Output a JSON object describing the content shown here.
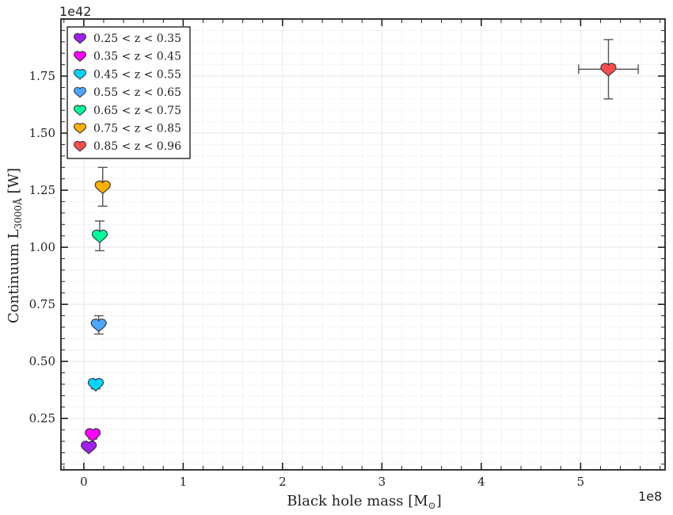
{
  "chart_data": {
    "type": "scatter",
    "xlabel": "Black hole mass [M",
    "xlabel_sub": "⊙",
    "xlabel_end": "]",
    "ylabel": "Continuum L",
    "ylabel_sub": "3000Å",
    "ylabel_end": " [W]",
    "x_offset_label": "1e8",
    "y_offset_label": "1e42",
    "xlim": [
      -0.23,
      5.85
    ],
    "ylim": [
      0.025,
      2.0
    ],
    "xticks": [
      0,
      1,
      2,
      3,
      4,
      5
    ],
    "yticks": [
      0.25,
      0.5,
      0.75,
      1.0,
      1.25,
      1.5,
      1.75
    ],
    "ytick_labels": [
      "0.25",
      "0.50",
      "0.75",
      "1.00",
      "1.25",
      "1.50",
      "1.75"
    ],
    "grid": true,
    "legend_position": "upper-left",
    "marker": "heart",
    "points": [
      {
        "name": "0.25 < z < 0.35",
        "color": "#a020f0",
        "x": 0.05,
        "y": 0.125,
        "xerr": 0,
        "yerr": 0.0
      },
      {
        "name": "0.35 < z < 0.45",
        "color": "#ff00ff",
        "x": 0.09,
        "y": 0.18,
        "xerr": 0,
        "yerr": 0.02
      },
      {
        "name": "0.45 < z < 0.55",
        "color": "#00d5ff",
        "x": 0.12,
        "y": 0.4,
        "xerr": 0,
        "yerr": 0.02
      },
      {
        "name": "0.55 < z < 0.65",
        "color": "#4aa8ff",
        "x": 0.15,
        "y": 0.66,
        "xerr": 0,
        "yerr": 0.04
      },
      {
        "name": "0.65 < z < 0.75",
        "color": "#00ff99",
        "x": 0.16,
        "y": 1.05,
        "xerr": 0,
        "yerr": 0.065
      },
      {
        "name": "0.75 < z < 0.85",
        "color": "#ffb000",
        "x": 0.19,
        "y": 1.265,
        "xerr": 0,
        "yerr": 0.085
      },
      {
        "name": "0.85 < z < 0.96",
        "color": "#ff4d4d",
        "x": 5.28,
        "y": 1.78,
        "xerr": 0.3,
        "yerr": 0.13
      }
    ]
  }
}
